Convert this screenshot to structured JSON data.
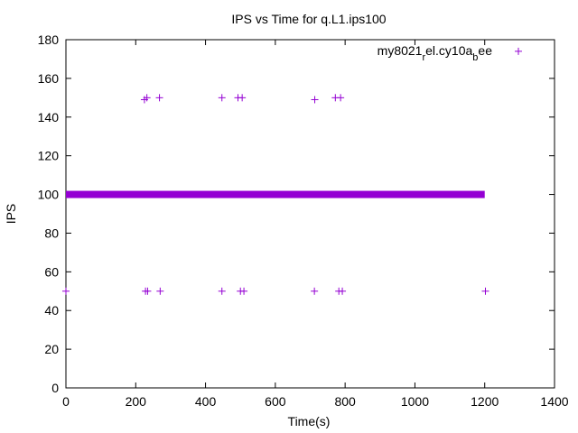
{
  "chart_data": {
    "type": "scatter",
    "title": "IPS vs Time for q.L1.ips100",
    "xlabel": "Time(s)",
    "ylabel": "IPS",
    "xlim": [
      0,
      1400
    ],
    "ylim": [
      0,
      180
    ],
    "xticks": [
      0,
      200,
      400,
      600,
      800,
      1000,
      1200,
      1400
    ],
    "yticks": [
      0,
      20,
      40,
      60,
      80,
      100,
      120,
      140,
      160,
      180
    ],
    "grid": false,
    "legend_position": "top-right",
    "series": [
      {
        "name_parts": [
          "my8021",
          "r",
          "el.cy10a",
          "b",
          "ee"
        ],
        "color": "#9400D3",
        "marker": "plus",
        "baseline": {
          "x_start": 0,
          "x_end": 1200,
          "y": 100
        },
        "points": [
          {
            "x": 0,
            "y": 50
          },
          {
            "x": 225,
            "y": 149
          },
          {
            "x": 232,
            "y": 150
          },
          {
            "x": 268,
            "y": 150
          },
          {
            "x": 447,
            "y": 150
          },
          {
            "x": 493,
            "y": 150
          },
          {
            "x": 505,
            "y": 150
          },
          {
            "x": 713,
            "y": 149
          },
          {
            "x": 772,
            "y": 150
          },
          {
            "x": 787,
            "y": 150
          },
          {
            "x": 228,
            "y": 50
          },
          {
            "x": 234,
            "y": 50
          },
          {
            "x": 270,
            "y": 50
          },
          {
            "x": 447,
            "y": 50
          },
          {
            "x": 500,
            "y": 50
          },
          {
            "x": 510,
            "y": 50
          },
          {
            "x": 712,
            "y": 50
          },
          {
            "x": 782,
            "y": 50
          },
          {
            "x": 792,
            "y": 50
          },
          {
            "x": 1202,
            "y": 50
          }
        ]
      }
    ]
  }
}
